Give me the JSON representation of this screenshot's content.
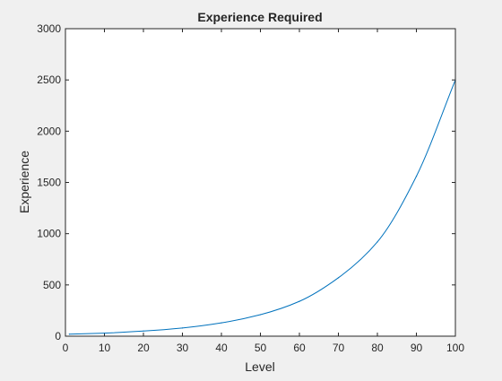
{
  "chart_data": {
    "type": "line",
    "title": "Experience Required",
    "xlabel": "Level",
    "ylabel": "Experience",
    "xlim": [
      0,
      100
    ],
    "ylim": [
      0,
      3000
    ],
    "xticks": [
      0,
      10,
      20,
      30,
      40,
      50,
      60,
      70,
      80,
      90,
      100
    ],
    "yticks": [
      0,
      500,
      1000,
      1500,
      2000,
      2500,
      3000
    ],
    "grid": false,
    "series": [
      {
        "color": "#0072bd",
        "x": [
          1,
          10,
          20,
          30,
          40,
          50,
          60,
          70,
          80,
          90,
          100
        ],
        "y": [
          20,
          30,
          50,
          80,
          130,
          210,
          340,
          570,
          920,
          1560,
          2500
        ]
      }
    ]
  }
}
